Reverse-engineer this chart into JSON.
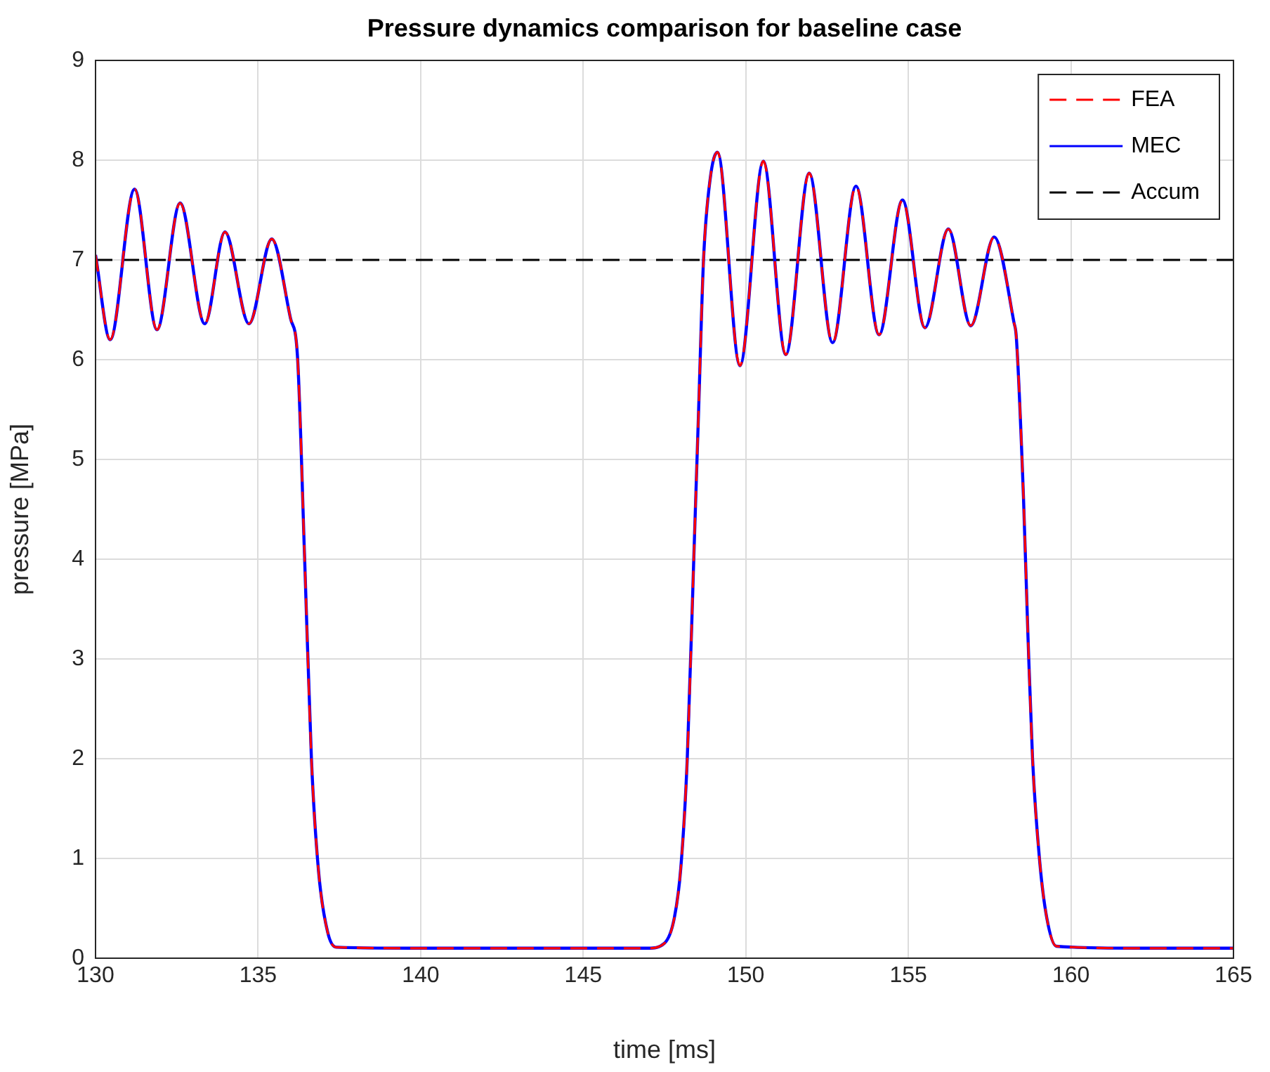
{
  "chart_data": {
    "type": "line",
    "title": "Pressure dynamics comparison for baseline case",
    "xlabel": "time [ms]",
    "ylabel": "pressure [MPa]",
    "xlim": [
      130,
      165
    ],
    "xticks": [
      130,
      135,
      140,
      145,
      150,
      155,
      160,
      165
    ],
    "ylim": [
      0,
      9
    ],
    "yticks": [
      0,
      1,
      2,
      3,
      4,
      5,
      6,
      7,
      8,
      9
    ],
    "grid": true,
    "legend": "top right",
    "marker": "none",
    "x": [
      130,
      130.45,
      131.2,
      131.89,
      132.6,
      133.36,
      133.98,
      134.72,
      135.42,
      136.0,
      136.21,
      136.43,
      136.64,
      136.86,
      137.14,
      137.4,
      140,
      145,
      147.0,
      147.5,
      147.8,
      148.0,
      148.2,
      148.4,
      148.55,
      148.7,
      148.9,
      149.13,
      149.82,
      150.54,
      151.23,
      151.95,
      152.67,
      153.39,
      154.1,
      154.82,
      155.51,
      156.23,
      156.92,
      157.64,
      158.25,
      158.32,
      158.54,
      158.68,
      158.82,
      159.04,
      159.26,
      159.55,
      162,
      165
    ],
    "series": [
      {
        "name": "FEA",
        "color": "#ff0000",
        "line_style": "dashed",
        "values": [
          7.05,
          6.2,
          7.71,
          6.3,
          7.57,
          6.36,
          7.28,
          6.36,
          7.21,
          6.41,
          6.04,
          4.02,
          2.0,
          0.87,
          0.26,
          0.11,
          0.1,
          0.1,
          0.1,
          0.15,
          0.4,
          0.9,
          2.0,
          4.0,
          5.5,
          7.0,
          7.8,
          8.08,
          5.94,
          7.99,
          6.05,
          7.87,
          6.17,
          7.74,
          6.25,
          7.6,
          6.32,
          7.31,
          6.34,
          7.23,
          6.37,
          6.23,
          4.63,
          3.22,
          2.0,
          0.97,
          0.4,
          0.12,
          0.1,
          0.1
        ]
      },
      {
        "name": "MEC",
        "color": "#0000ff",
        "line_style": "solid",
        "values": [
          7.05,
          6.2,
          7.71,
          6.3,
          7.57,
          6.36,
          7.28,
          6.36,
          7.21,
          6.41,
          6.04,
          4.02,
          2.0,
          0.87,
          0.26,
          0.11,
          0.1,
          0.1,
          0.1,
          0.15,
          0.4,
          0.9,
          2.0,
          4.0,
          5.5,
          7.0,
          7.8,
          8.08,
          5.94,
          7.99,
          6.05,
          7.87,
          6.17,
          7.74,
          6.25,
          7.6,
          6.32,
          7.31,
          6.34,
          7.23,
          6.37,
          6.23,
          4.63,
          3.22,
          2.0,
          0.97,
          0.4,
          0.12,
          0.1,
          0.1
        ]
      }
    ],
    "ref_lines": [
      {
        "axis": "y",
        "value": 7,
        "label": "Accum",
        "color": "#000000",
        "line_style": "dashed"
      }
    ]
  }
}
